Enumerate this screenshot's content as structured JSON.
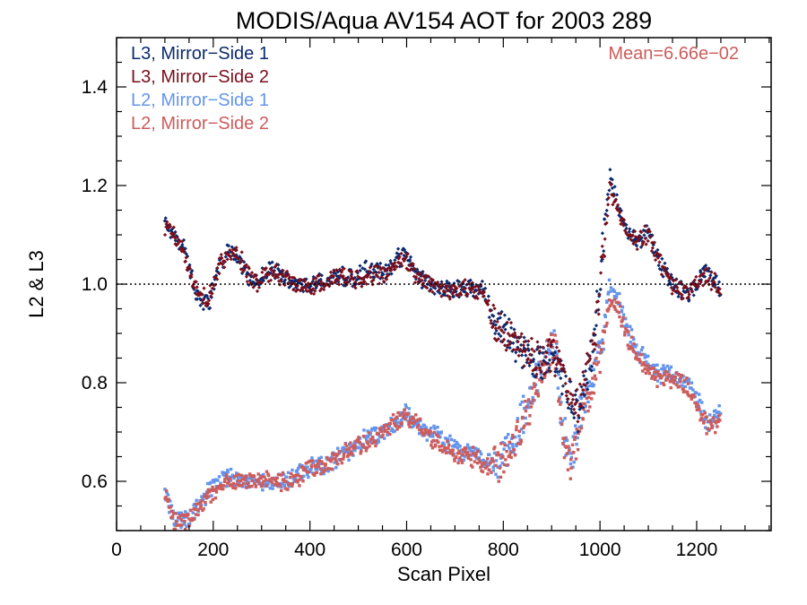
{
  "chart_data": {
    "type": "scatter",
    "title": "MODIS/Aqua AV154 AOT for 2003 289",
    "xlabel": "Scan Pixel",
    "ylabel": "L2 & L3",
    "xlim": [
      0,
      1354
    ],
    "ylim": [
      0.5,
      1.5
    ],
    "x_ticks": [
      0,
      200,
      400,
      600,
      800,
      1000,
      1200
    ],
    "y_ticks": [
      0.6,
      0.8,
      1.0,
      1.2,
      1.4
    ],
    "x_tick_labels": [
      "0",
      "200",
      "400",
      "600",
      "800",
      "1000",
      "1200"
    ],
    "y_tick_labels": [
      "0.6",
      "0.8",
      "1.0",
      "1.2",
      "1.4"
    ],
    "reference_line": 1.0,
    "legend_position": "top-left",
    "annotation": "Mean=6.66e−02",
    "series": [
      {
        "name": "L3, Mirror−Side 1",
        "color": "#0b2a6e",
        "profile_x": [
          100,
          120,
          140,
          160,
          175,
          190,
          210,
          230,
          250,
          270,
          290,
          310,
          330,
          350,
          370,
          400,
          430,
          460,
          490,
          520,
          550,
          580,
          600,
          620,
          650,
          680,
          720,
          760,
          780,
          800,
          820,
          850,
          880,
          900,
          920,
          940,
          955,
          970,
          990,
          1010,
          1020,
          1040,
          1060,
          1080,
          1100,
          1120,
          1150,
          1180,
          1200,
          1220,
          1240,
          1250
        ],
        "profile_y": [
          1.13,
          1.1,
          1.07,
          1.0,
          0.96,
          0.96,
          1.03,
          1.07,
          1.06,
          1.02,
          1.0,
          1.02,
          1.03,
          1.01,
          1.0,
          1.0,
          1.0,
          1.02,
          1.01,
          1.03,
          1.02,
          1.05,
          1.06,
          1.02,
          1.0,
          0.99,
          0.99,
          0.99,
          0.92,
          0.91,
          0.88,
          0.86,
          0.84,
          0.85,
          0.82,
          0.77,
          0.73,
          0.8,
          0.9,
          1.12,
          1.22,
          1.15,
          1.1,
          1.09,
          1.11,
          1.05,
          1.0,
          0.98,
          1.0,
          1.03,
          1.0,
          0.98
        ]
      },
      {
        "name": "L3, Mirror−Side 2",
        "color": "#7a0e1c",
        "profile_x": [
          100,
          120,
          140,
          160,
          175,
          190,
          210,
          230,
          250,
          270,
          290,
          310,
          330,
          350,
          370,
          400,
          430,
          460,
          490,
          520,
          550,
          580,
          600,
          620,
          650,
          680,
          720,
          760,
          780,
          800,
          820,
          850,
          880,
          900,
          920,
          940,
          955,
          970,
          990,
          1010,
          1020,
          1040,
          1060,
          1080,
          1100,
          1120,
          1150,
          1180,
          1200,
          1220,
          1240,
          1250
        ],
        "profile_y": [
          1.12,
          1.1,
          1.06,
          1.0,
          0.97,
          0.97,
          1.03,
          1.06,
          1.06,
          1.02,
          1.0,
          1.02,
          1.02,
          1.01,
          1.0,
          1.0,
          1.0,
          1.02,
          1.01,
          1.02,
          1.02,
          1.04,
          1.05,
          1.02,
          1.0,
          0.99,
          0.99,
          0.98,
          0.92,
          0.9,
          0.88,
          0.86,
          0.84,
          0.86,
          0.83,
          0.78,
          0.74,
          0.81,
          0.9,
          1.1,
          1.19,
          1.14,
          1.1,
          1.09,
          1.1,
          1.05,
          1.0,
          0.98,
          1.0,
          1.02,
          1.0,
          0.98
        ]
      },
      {
        "name": "L2, Mirror−Side 1",
        "color": "#6495ed",
        "profile_x": [
          100,
          110,
          120,
          140,
          150,
          170,
          190,
          210,
          230,
          250,
          280,
          300,
          330,
          360,
          380,
          400,
          430,
          460,
          490,
          520,
          550,
          580,
          600,
          620,
          650,
          680,
          710,
          740,
          760,
          780,
          800,
          820,
          840,
          860,
          880,
          900,
          910,
          920,
          940,
          950,
          960,
          980,
          1000,
          1020,
          1040,
          1060,
          1080,
          1100,
          1120,
          1150,
          1180,
          1200,
          1220,
          1240,
          1250
        ],
        "profile_y": [
          0.58,
          0.55,
          0.52,
          0.53,
          0.52,
          0.55,
          0.58,
          0.6,
          0.61,
          0.6,
          0.6,
          0.6,
          0.6,
          0.6,
          0.62,
          0.63,
          0.63,
          0.65,
          0.67,
          0.69,
          0.7,
          0.72,
          0.74,
          0.72,
          0.7,
          0.68,
          0.66,
          0.66,
          0.64,
          0.64,
          0.65,
          0.68,
          0.73,
          0.78,
          0.84,
          0.88,
          0.86,
          0.72,
          0.63,
          0.68,
          0.74,
          0.8,
          0.86,
          0.99,
          0.97,
          0.9,
          0.86,
          0.84,
          0.82,
          0.82,
          0.8,
          0.77,
          0.72,
          0.73,
          0.75
        ]
      },
      {
        "name": "L2, Mirror−Side 2",
        "color": "#cd5c5c",
        "profile_x": [
          100,
          110,
          120,
          140,
          150,
          170,
          190,
          210,
          230,
          250,
          280,
          300,
          330,
          360,
          380,
          400,
          430,
          460,
          490,
          520,
          550,
          580,
          600,
          620,
          650,
          680,
          710,
          740,
          760,
          780,
          800,
          820,
          840,
          860,
          880,
          900,
          910,
          920,
          940,
          950,
          960,
          980,
          1000,
          1020,
          1040,
          1060,
          1080,
          1100,
          1120,
          1150,
          1180,
          1200,
          1220,
          1240,
          1250
        ],
        "profile_y": [
          0.57,
          0.54,
          0.52,
          0.52,
          0.52,
          0.55,
          0.57,
          0.59,
          0.6,
          0.6,
          0.6,
          0.6,
          0.6,
          0.6,
          0.61,
          0.63,
          0.63,
          0.65,
          0.67,
          0.68,
          0.7,
          0.72,
          0.73,
          0.72,
          0.69,
          0.67,
          0.65,
          0.65,
          0.63,
          0.63,
          0.64,
          0.67,
          0.72,
          0.77,
          0.83,
          0.87,
          0.85,
          0.71,
          0.62,
          0.67,
          0.73,
          0.79,
          0.85,
          0.97,
          0.95,
          0.88,
          0.85,
          0.83,
          0.81,
          0.81,
          0.79,
          0.76,
          0.71,
          0.72,
          0.74
        ]
      }
    ]
  }
}
